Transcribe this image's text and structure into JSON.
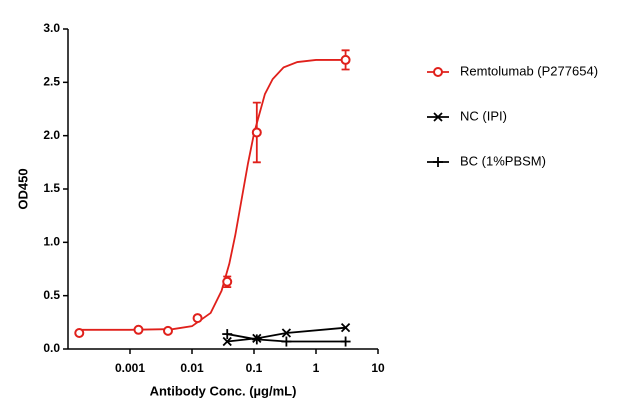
{
  "chart_data": {
    "type": "dose-response",
    "x_label": "Antibody Conc. (µg/mL)",
    "y_label": "OD450",
    "log_x": true,
    "xlim": [
      0.0001,
      10
    ],
    "xticks": [
      0.001,
      0.01,
      0.1,
      1,
      10
    ],
    "ylim": [
      0,
      3
    ],
    "yticks": [
      {
        "value": 0,
        "label": "0.0"
      },
      0.5,
      {
        "value": 1,
        "label": "1.0"
      },
      1.5,
      {
        "value": 2,
        "label": "2.0"
      },
      2.5,
      {
        "value": 3,
        "label": "3.0"
      }
    ],
    "series": [
      {
        "name": "Remtolumab (P277654)",
        "color": "#e0201b",
        "marker": "circle",
        "x": [
          0.000152,
          0.00137,
          0.0041,
          0.0123,
          0.037,
          0.111,
          3
        ],
        "values": [
          0.15,
          0.18,
          0.17,
          0.29,
          0.63,
          2.03,
          2.71
        ],
        "errors": [
          null,
          null,
          null,
          null,
          0.05,
          0.28,
          0.09
        ],
        "fit_x": [
          0.00015,
          0.001,
          0.005,
          0.01,
          0.02,
          0.03,
          0.04,
          0.05,
          0.065,
          0.08,
          0.1,
          0.15,
          0.2,
          0.3,
          0.5,
          1,
          3
        ],
        "fit_values": [
          0.18,
          0.18,
          0.187,
          0.214,
          0.338,
          0.546,
          0.8,
          1.07,
          1.445,
          1.74,
          2.02,
          2.39,
          2.53,
          2.64,
          2.69,
          2.71,
          2.71
        ]
      },
      {
        "name": "NC (IPI)",
        "color": "#000000",
        "marker": "x",
        "x": [
          0.037,
          0.111,
          0.333,
          3
        ],
        "values": [
          0.07,
          0.1,
          0.15,
          0.2
        ]
      },
      {
        "name": "BC (1%PBSM)",
        "color": "#000000",
        "marker": "plus",
        "x": [
          0.037,
          0.111,
          0.333,
          3
        ],
        "values": [
          0.14,
          0.09,
          0.07,
          0.07
        ]
      }
    ]
  }
}
